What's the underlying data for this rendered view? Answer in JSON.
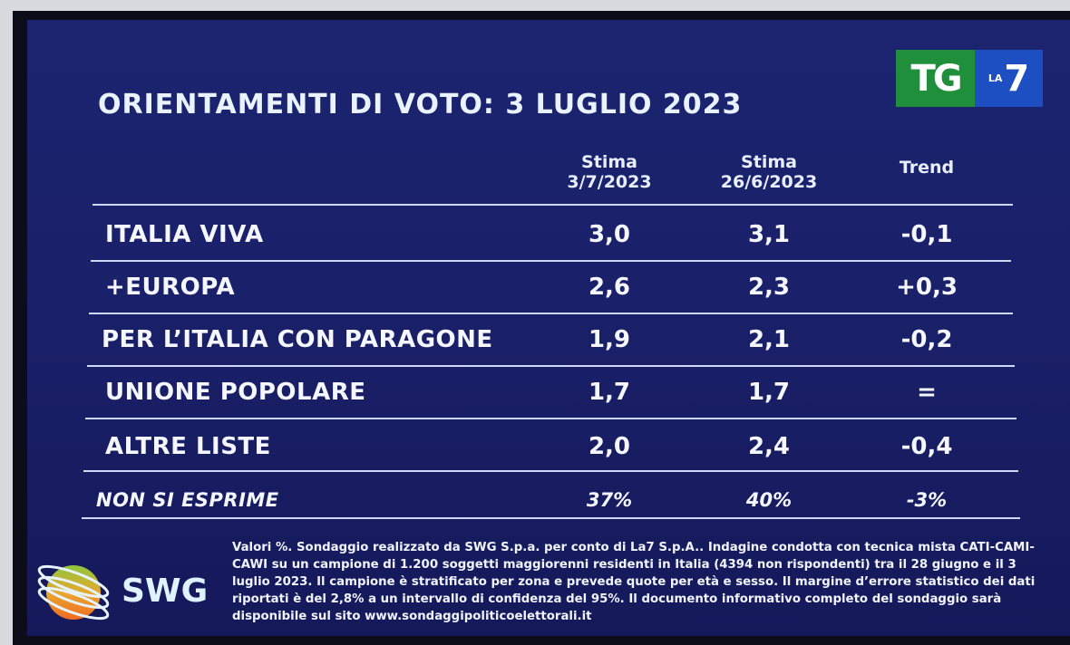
{
  "title": "ORIENTAMENTI DI VOTO: 3 LUGLIO 2023",
  "logo": {
    "tg": "TG",
    "la": "LA",
    "seven": "7",
    "tg_color": "#1f8f3c",
    "la7_color": "#1e4fc2"
  },
  "columns": [
    {
      "line1": "Stima",
      "line2": "3/7/2023"
    },
    {
      "line1": "Stima",
      "line2": "26/6/2023"
    },
    {
      "line1": "Trend",
      "line2": ""
    }
  ],
  "rows": [
    {
      "name": "ITALIA VIVA",
      "current": "3,0",
      "previous": "3,1",
      "trend": "-0,1"
    },
    {
      "name": "+EUROPA",
      "current": "2,6",
      "previous": "2,3",
      "trend": "+0,3"
    },
    {
      "name": "PER L’ITALIA CON PARAGONE",
      "current": "1,9",
      "previous": "2,1",
      "trend": "-0,2"
    },
    {
      "name": "UNIONE POPOLARE",
      "current": "1,7",
      "previous": "1,7",
      "trend": "="
    },
    {
      "name": "ALTRE LISTE",
      "current": "2,0",
      "previous": "2,4",
      "trend": "-0,4"
    },
    {
      "name": "NON SI ESPRIME",
      "current": "37%",
      "previous": "40%",
      "trend": "-3%"
    }
  ],
  "footnote": "Valori %. Sondaggio realizzato da SWG S.p.a. per conto di La7 S.p.A.. Indagine condotta con tecnica mista CATI-CAMI-CAWI su un campione di 1.200 soggetti maggiorenni residenti in Italia (4394 non rispondenti) tra il 28 giugno e il 3 luglio 2023. Il campione è stratificato per zona e prevede quote per età e sesso. Il margine d’errore statistico dei dati riportati è del 2,8% a un intervallo di confidenza del 95%. Il documento informativo completo del sondaggio sarà disponibile sul sito www.sondaggipoliticoelettorali.it",
  "swg_logo": "SWG",
  "chart_data": {
    "type": "table",
    "title": "ORIENTAMENTI DI VOTO: 3 LUGLIO 2023",
    "columns": [
      "",
      "Stima 3/7/2023",
      "Stima 26/6/2023",
      "Trend"
    ],
    "rows": [
      [
        "ITALIA VIVA",
        "3,0",
        "3,1",
        "-0,1"
      ],
      [
        "+EUROPA",
        "2,6",
        "2,3",
        "+0,3"
      ],
      [
        "PER L’ITALIA CON PARAGONE",
        "1,9",
        "2,1",
        "-0,2"
      ],
      [
        "UNIONE POPOLARE",
        "1,7",
        "1,7",
        "="
      ],
      [
        "ALTRE LISTE",
        "2,0",
        "2,4",
        "-0,4"
      ],
      [
        "NON SI ESPRIME",
        "37%",
        "40%",
        "-3%"
      ]
    ]
  }
}
